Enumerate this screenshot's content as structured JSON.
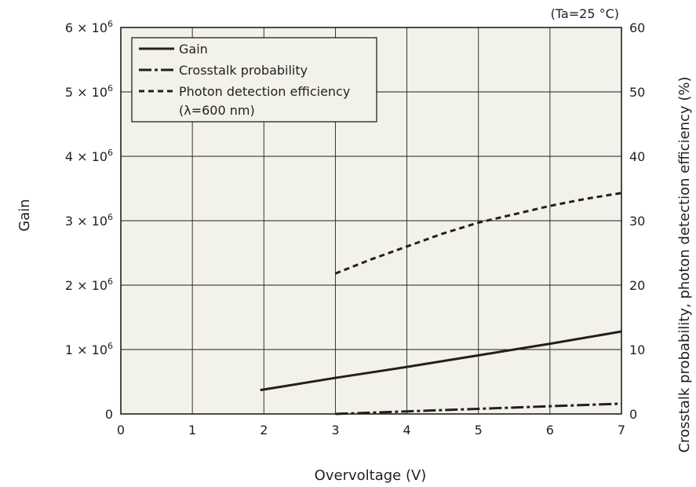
{
  "chart_data": {
    "type": "line",
    "note": "(Ta=25 °C)",
    "xlabel": "Overvoltage (V)",
    "ylabel_left": "Gain",
    "ylabel_right": "Crosstalk probability, photon detection efficiency (%)",
    "xlim": [
      0,
      7
    ],
    "ylim_left": [
      0,
      6000000
    ],
    "ylim_right": [
      0,
      60
    ],
    "grid": true,
    "legend_placement": "top-left",
    "x_ticks": [
      "0",
      "1",
      "2",
      "3",
      "4",
      "5",
      "6",
      "7"
    ],
    "y_left_ticks": [
      {
        "value": 0,
        "base": "0",
        "exp": ""
      },
      {
        "value": 1000000,
        "base": "1 × 10",
        "exp": "6"
      },
      {
        "value": 2000000,
        "base": "2 × 10",
        "exp": "6"
      },
      {
        "value": 3000000,
        "base": "3 × 10",
        "exp": "6"
      },
      {
        "value": 4000000,
        "base": "4 × 10",
        "exp": "6"
      },
      {
        "value": 5000000,
        "base": "5 × 10",
        "exp": "6"
      },
      {
        "value": 6000000,
        "base": "6 × 10",
        "exp": "6"
      }
    ],
    "y_right_ticks": [
      "0",
      "10",
      "20",
      "30",
      "40",
      "50",
      "60"
    ],
    "series": [
      {
        "name": "Gain",
        "axis": "left",
        "style": "solid",
        "x": [
          1.95,
          3,
          4,
          5,
          6,
          7
        ],
        "y": [
          370000,
          560000,
          730000,
          910000,
          1090000,
          1280000
        ]
      },
      {
        "name": "Crosstalk probability",
        "axis": "right",
        "style": "dashdot",
        "x": [
          3,
          4,
          5,
          6,
          7
        ],
        "y": [
          0,
          0.4,
          0.8,
          1.2,
          1.6
        ]
      },
      {
        "name": "Photon detection efficiency",
        "name_line2": "(λ=600 nm)",
        "axis": "right",
        "style": "dashed",
        "x": [
          3,
          3.5,
          4,
          4.5,
          5,
          5.5,
          6,
          6.5,
          7
        ],
        "y": [
          21.8,
          24,
          26,
          28,
          29.7,
          31,
          32.3,
          33.4,
          34.3
        ]
      }
    ]
  },
  "colors": {
    "plot_background": "#f2f2ea",
    "line": "#231f20",
    "grid": "#231f20"
  }
}
